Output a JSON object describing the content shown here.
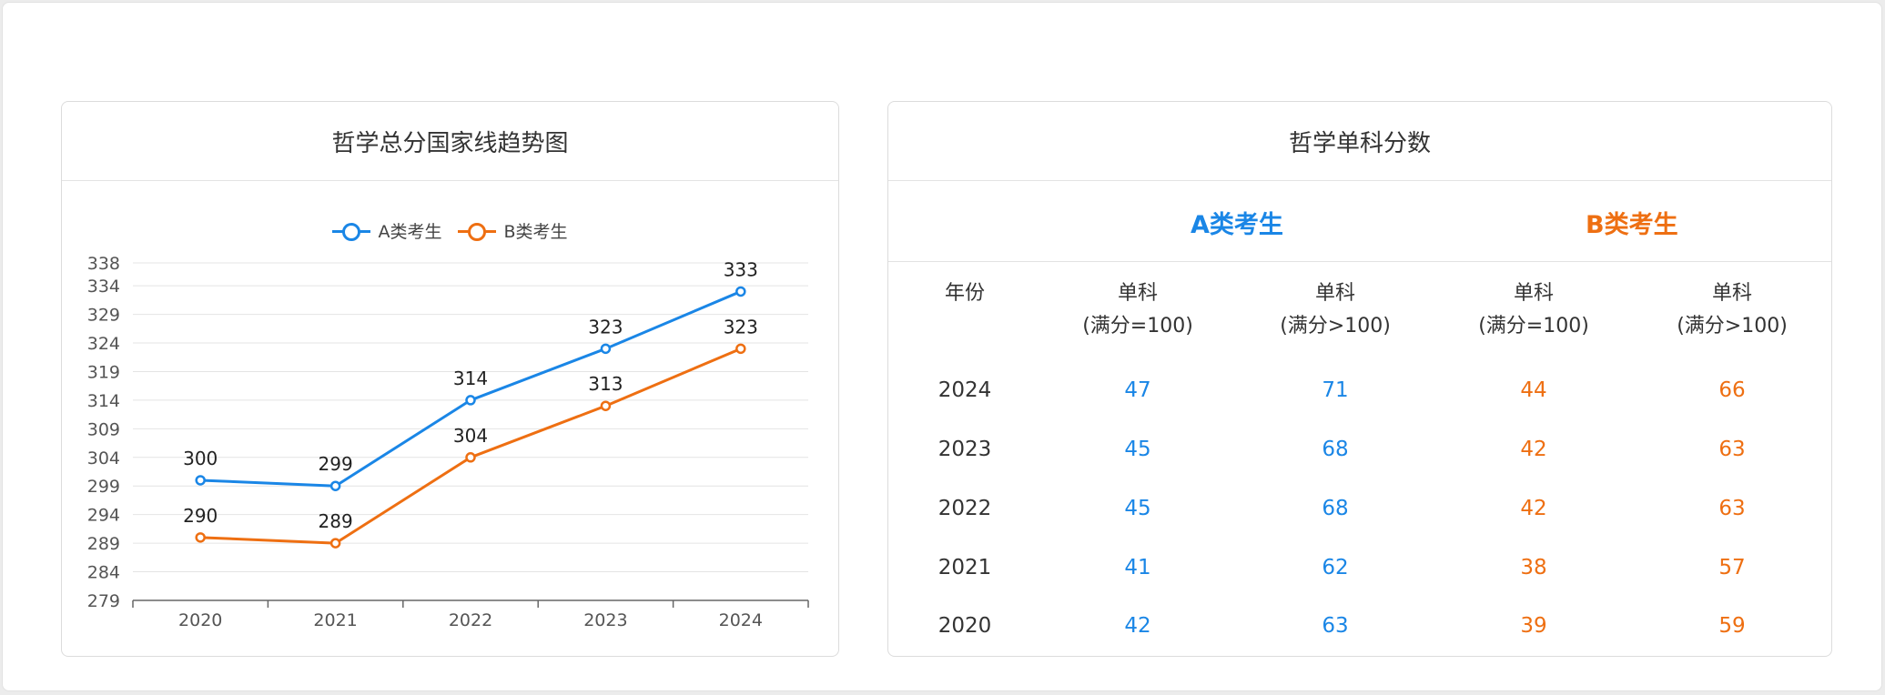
{
  "left_card": {
    "title": "哲学总分国家线趋势图"
  },
  "right_card": {
    "title": "哲学单科分数",
    "group_a": "A类考生",
    "group_b": "B类考生",
    "headers": {
      "year": "年份",
      "a1_line1": "单科",
      "a1_line2": "(满分=100)",
      "a2_line1": "单科",
      "a2_line2": "(满分>100)",
      "b1_line1": "单科",
      "b1_line2": "(满分=100)",
      "b2_line1": "单科",
      "b2_line2": "(满分>100)"
    },
    "rows": [
      {
        "year": "2024",
        "a1": "47",
        "a2": "71",
        "b1": "44",
        "b2": "66"
      },
      {
        "year": "2023",
        "a1": "45",
        "a2": "68",
        "b1": "42",
        "b2": "63"
      },
      {
        "year": "2022",
        "a1": "45",
        "a2": "68",
        "b1": "42",
        "b2": "63"
      },
      {
        "year": "2021",
        "a1": "41",
        "a2": "62",
        "b1": "38",
        "b2": "57"
      },
      {
        "year": "2020",
        "a1": "42",
        "a2": "63",
        "b1": "39",
        "b2": "59"
      }
    ]
  },
  "colors": {
    "series_a": "#1a86e6",
    "series_b": "#ee6f12"
  },
  "chart_data": {
    "type": "line",
    "title": "哲学总分国家线趋势图",
    "categories": [
      "2020",
      "2021",
      "2022",
      "2023",
      "2024"
    ],
    "series": [
      {
        "name": "A类考生",
        "values": [
          300,
          299,
          314,
          323,
          333
        ],
        "color": "#1a86e6"
      },
      {
        "name": "B类考生",
        "values": [
          290,
          289,
          304,
          313,
          323
        ],
        "color": "#ee6f12"
      }
    ],
    "yticks": [
      279,
      284,
      289,
      294,
      299,
      304,
      309,
      314,
      319,
      324,
      329,
      334,
      338
    ],
    "ylim": [
      279,
      338
    ],
    "grid": true,
    "legend": "top-center",
    "data_labels": true
  }
}
